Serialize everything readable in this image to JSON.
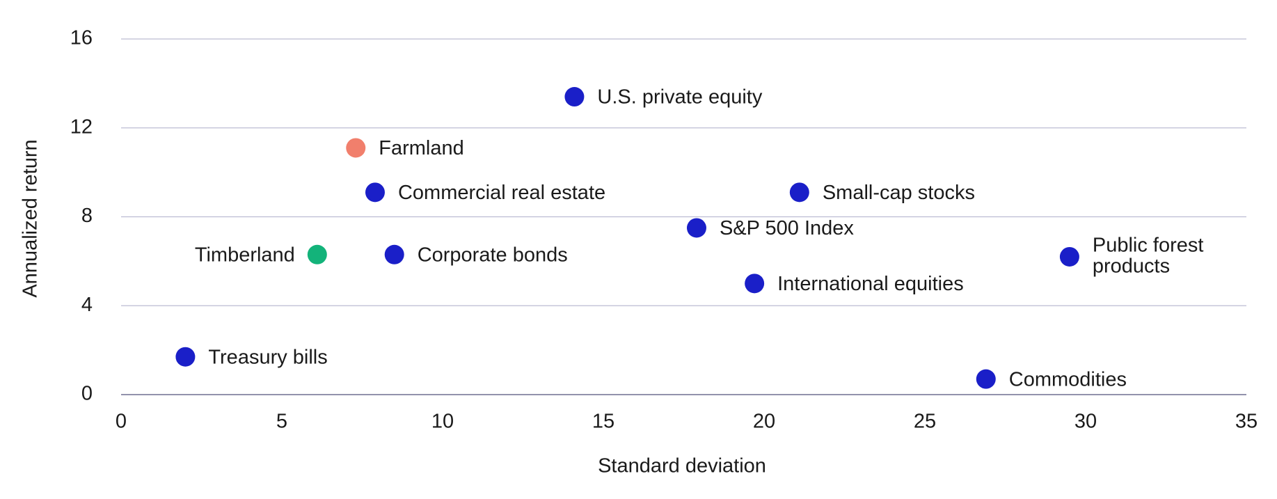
{
  "chart_data": {
    "type": "scatter",
    "x_label": "Standard deviation",
    "y_label": "Annualized return",
    "xlim": [
      0,
      35
    ],
    "xticks": [
      0,
      5,
      10,
      15,
      20,
      25,
      30,
      35
    ],
    "ylim": [
      0,
      16
    ],
    "yticks": [
      0,
      4,
      8,
      12,
      16
    ],
    "grid": true,
    "points": [
      {
        "label": "U.S. private equity",
        "x": 14.1,
        "y": 13.4,
        "color": "#1a1fc8"
      },
      {
        "label": "Farmland",
        "x": 7.3,
        "y": 11.1,
        "color": "#f17f6c"
      },
      {
        "label": "Commercial real estate",
        "x": 7.9,
        "y": 9.1,
        "color": "#1a1fc8"
      },
      {
        "label": "Small-cap stocks",
        "x": 21.1,
        "y": 9.1,
        "color": "#1a1fc8"
      },
      {
        "label": "S&P 500 Index",
        "x": 17.9,
        "y": 7.5,
        "color": "#1a1fc8"
      },
      {
        "label": "Timberland",
        "x": 6.1,
        "y": 6.3,
        "color": "#13b37a"
      },
      {
        "label": "Corporate bonds",
        "x": 8.5,
        "y": 6.3,
        "color": "#1a1fc8"
      },
      {
        "label": [
          "Public forest",
          "products"
        ],
        "x": 29.5,
        "y": 6.2,
        "color": "#1a1fc8"
      },
      {
        "label": "International equities",
        "x": 19.7,
        "y": 5.0,
        "color": "#1a1fc8"
      },
      {
        "label": "Treasury bills",
        "x": 2.0,
        "y": 1.7,
        "color": "#1a1fc8"
      },
      {
        "label": "Commodities",
        "x": 26.9,
        "y": 0.7,
        "color": "#1a1fc8"
      }
    ]
  }
}
